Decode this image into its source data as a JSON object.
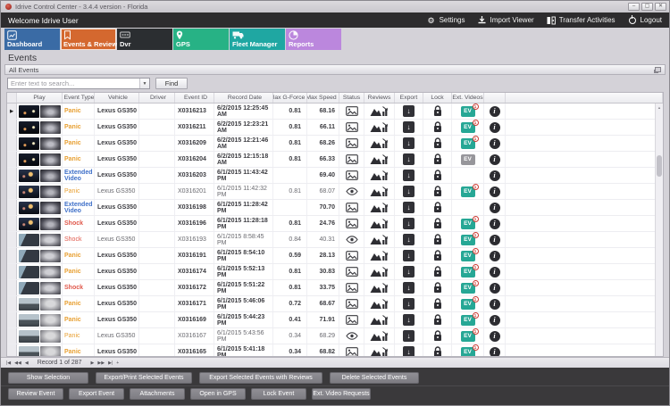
{
  "window": {
    "title": "Idrive Control Center - 3.4.4 version - Florida",
    "controls": [
      {
        "name": "minimize",
        "glyph": "–"
      },
      {
        "name": "maximize",
        "glyph": "▢"
      },
      {
        "name": "close",
        "glyph": "✕"
      }
    ]
  },
  "header": {
    "welcome": "Welcome Idrive User",
    "menu": [
      {
        "label": "Settings",
        "icon": "gear-icon"
      },
      {
        "label": "Import Viewer",
        "icon": "download-icon"
      },
      {
        "label": "Transfer Activities",
        "icon": "transfer-icon"
      },
      {
        "label": "Logout",
        "icon": "power-icon"
      }
    ]
  },
  "tabs": [
    {
      "label": "Dashboard",
      "icon": "dashboard-chart-icon",
      "color": "#3a6ba5",
      "selected": false
    },
    {
      "label": "Events & Reviews",
      "icon": "events-bookmark-icon",
      "color": "#d4682f",
      "selected": true
    },
    {
      "label": "Dvr",
      "icon": "dvr-box-icon",
      "color": "#2b2e31",
      "selected": false
    },
    {
      "label": "GPS",
      "icon": "gps-pin-icon",
      "color": "#27b285",
      "selected": false
    },
    {
      "label": "Fleet Manager",
      "icon": "truck-icon",
      "color": "#1fa7a2",
      "selected": false
    },
    {
      "label": "Reports",
      "icon": "pie-chart-icon",
      "color": "#bb87dd",
      "selected": false
    }
  ],
  "page": {
    "title": "Events",
    "panel_title": "All Events"
  },
  "search": {
    "placeholder": "Enter text to search...",
    "find_label": "Find"
  },
  "grid": {
    "columns": [
      "Play",
      "Event Type",
      "Vehicle",
      "Driver",
      "Event ID",
      "Record Date",
      "Max G-Force",
      "Max Speed",
      "Status",
      "Reviews",
      "Export",
      "Lock",
      "Ext. Videos"
    ],
    "rows": [
      {
        "event_type": "Panic",
        "type_key": "panic",
        "vehicle": "Lexus GS350",
        "driver": "",
        "event_id": "X0316213",
        "record_date": "6/2/2015 12:25:45 AM",
        "max_g_force": "0.81",
        "max_speed": "68.16",
        "status_icon": "image-icon",
        "reviewed": false,
        "ext_video": "badge",
        "ext_video_count": "1",
        "thumb": "night"
      },
      {
        "event_type": "Panic",
        "type_key": "panic",
        "vehicle": "Lexus GS350",
        "driver": "",
        "event_id": "X0316211",
        "record_date": "6/2/2015 12:23:21 AM",
        "max_g_force": "0.81",
        "max_speed": "66.11",
        "status_icon": "image-icon",
        "reviewed": false,
        "ext_video": "badge",
        "ext_video_count": "1",
        "thumb": "night"
      },
      {
        "event_type": "Panic",
        "type_key": "panic",
        "vehicle": "Lexus GS350",
        "driver": "",
        "event_id": "X0316209",
        "record_date": "6/2/2015 12:21:46 AM",
        "max_g_force": "0.81",
        "max_speed": "68.26",
        "status_icon": "image-icon",
        "reviewed": false,
        "ext_video": "badge",
        "ext_video_count": "1",
        "thumb": "night"
      },
      {
        "event_type": "Panic",
        "type_key": "panic",
        "vehicle": "Lexus GS350",
        "driver": "",
        "event_id": "X0316204",
        "record_date": "6/2/2015 12:15:18 AM",
        "max_g_force": "0.81",
        "max_speed": "66.33",
        "status_icon": "image-icon",
        "reviewed": false,
        "ext_video": "gray",
        "ext_video_count": "",
        "thumb": "night"
      },
      {
        "event_type": "Extended Video",
        "type_key": "extended_video",
        "vehicle": "Lexus GS350",
        "driver": "",
        "event_id": "X0316203",
        "record_date": "6/1/2015 11:43:42 PM",
        "max_g_force": "",
        "max_speed": "69.40",
        "status_icon": "image-icon",
        "reviewed": false,
        "ext_video": "none",
        "ext_video_count": "",
        "thumb": "night2"
      },
      {
        "event_type": "Panic",
        "type_key": "panic",
        "vehicle": "Lexus GS350",
        "driver": "",
        "event_id": "X0316201",
        "record_date": "6/1/2015 11:42:32 PM",
        "max_g_force": "0.81",
        "max_speed": "68.07",
        "status_icon": "eye-icon",
        "reviewed": true,
        "ext_video": "badge",
        "ext_video_count": "1",
        "thumb": "night2"
      },
      {
        "event_type": "Extended Video",
        "type_key": "extended_video",
        "vehicle": "Lexus GS350",
        "driver": "",
        "event_id": "X0316198",
        "record_date": "6/1/2015 11:28:42 PM",
        "max_g_force": "",
        "max_speed": "70.70",
        "status_icon": "image-icon",
        "reviewed": false,
        "ext_video": "none",
        "ext_video_count": "",
        "thumb": "night2"
      },
      {
        "event_type": "Shock",
        "type_key": "shock",
        "vehicle": "Lexus GS350",
        "driver": "",
        "event_id": "X0316196",
        "record_date": "6/1/2015 11:28:18 PM",
        "max_g_force": "0.81",
        "max_speed": "24.76",
        "status_icon": "image-icon",
        "reviewed": false,
        "ext_video": "badge",
        "ext_video_count": "1",
        "thumb": "night2"
      },
      {
        "event_type": "Shock",
        "type_key": "shock",
        "vehicle": "Lexus GS350",
        "driver": "",
        "event_id": "X0316193",
        "record_date": "6/1/2015 8:58:45 PM",
        "max_g_force": "0.84",
        "max_speed": "40.31",
        "status_icon": "eye-icon",
        "reviewed": true,
        "ext_video": "badge",
        "ext_video_count": "1",
        "thumb": "interior"
      },
      {
        "event_type": "Panic",
        "type_key": "panic",
        "vehicle": "Lexus GS350",
        "driver": "",
        "event_id": "X0316191",
        "record_date": "6/1/2015 8:54:10 PM",
        "max_g_force": "0.59",
        "max_speed": "28.13",
        "status_icon": "image-icon",
        "reviewed": false,
        "ext_video": "badge",
        "ext_video_count": "1",
        "thumb": "interior"
      },
      {
        "event_type": "Panic",
        "type_key": "panic",
        "vehicle": "Lexus GS350",
        "driver": "",
        "event_id": "X0316174",
        "record_date": "6/1/2015 5:52:13 PM",
        "max_g_force": "0.81",
        "max_speed": "30.83",
        "status_icon": "image-icon",
        "reviewed": false,
        "ext_video": "badge",
        "ext_video_count": "1",
        "thumb": "interior"
      },
      {
        "event_type": "Shock",
        "type_key": "shock",
        "vehicle": "Lexus GS350",
        "driver": "",
        "event_id": "X0316172",
        "record_date": "6/1/2015 5:51:22 PM",
        "max_g_force": "0.81",
        "max_speed": "33.75",
        "status_icon": "image-icon",
        "reviewed": false,
        "ext_video": "badge",
        "ext_video_count": "1",
        "thumb": "interior"
      },
      {
        "event_type": "Panic",
        "type_key": "panic",
        "vehicle": "Lexus GS350",
        "driver": "",
        "event_id": "X0316171",
        "record_date": "6/1/2015 5:46:06 PM",
        "max_g_force": "0.72",
        "max_speed": "68.67",
        "status_icon": "image-icon",
        "reviewed": false,
        "ext_video": "badge",
        "ext_video_count": "1",
        "thumb": "day"
      },
      {
        "event_type": "Panic",
        "type_key": "panic",
        "vehicle": "Lexus GS350",
        "driver": "",
        "event_id": "X0316169",
        "record_date": "6/1/2015 5:44:23 PM",
        "max_g_force": "0.41",
        "max_speed": "71.91",
        "status_icon": "image-icon",
        "reviewed": false,
        "ext_video": "badge",
        "ext_video_count": "1",
        "thumb": "day"
      },
      {
        "event_type": "Panic",
        "type_key": "panic",
        "vehicle": "Lexus GS350",
        "driver": "",
        "event_id": "X0316167",
        "record_date": "6/1/2015 5:43:56 PM",
        "max_g_force": "0.34",
        "max_speed": "68.29",
        "status_icon": "eye-icon",
        "reviewed": true,
        "ext_video": "badge",
        "ext_video_count": "1",
        "thumb": "day"
      },
      {
        "event_type": "Panic",
        "type_key": "panic",
        "vehicle": "Lexus GS350",
        "driver": "",
        "event_id": "X0316165",
        "record_date": "6/1/2015 5:41:18 PM",
        "max_g_force": "0.34",
        "max_speed": "68.82",
        "status_icon": "image-icon",
        "reviewed": false,
        "ext_video": "badge",
        "ext_video_count": "1",
        "thumb": "day"
      }
    ]
  },
  "pager": {
    "label": "Record 1 of 287",
    "left_buttons": [
      "first",
      "prev-page",
      "prev"
    ],
    "right_buttons": [
      "next",
      "next-page",
      "last",
      "add"
    ]
  },
  "actions": {
    "row1": [
      "Show Selection",
      "Export/Print Selected Events",
      "Export Selected Events with Reviews",
      "Delete Selected Events"
    ],
    "row2": [
      "Review Event",
      "Export Event",
      "Attachments",
      "Open in GPS",
      "Lock Event",
      "Ext. Video Requests"
    ]
  },
  "colors": {
    "panic": "#e8a033",
    "shock": "#e0584b",
    "extended_video": "#3e6fc8",
    "ev_badge_bg": "#26a795",
    "ev_gray_bg": "#97969b",
    "tab_selected": "#d4682f"
  }
}
